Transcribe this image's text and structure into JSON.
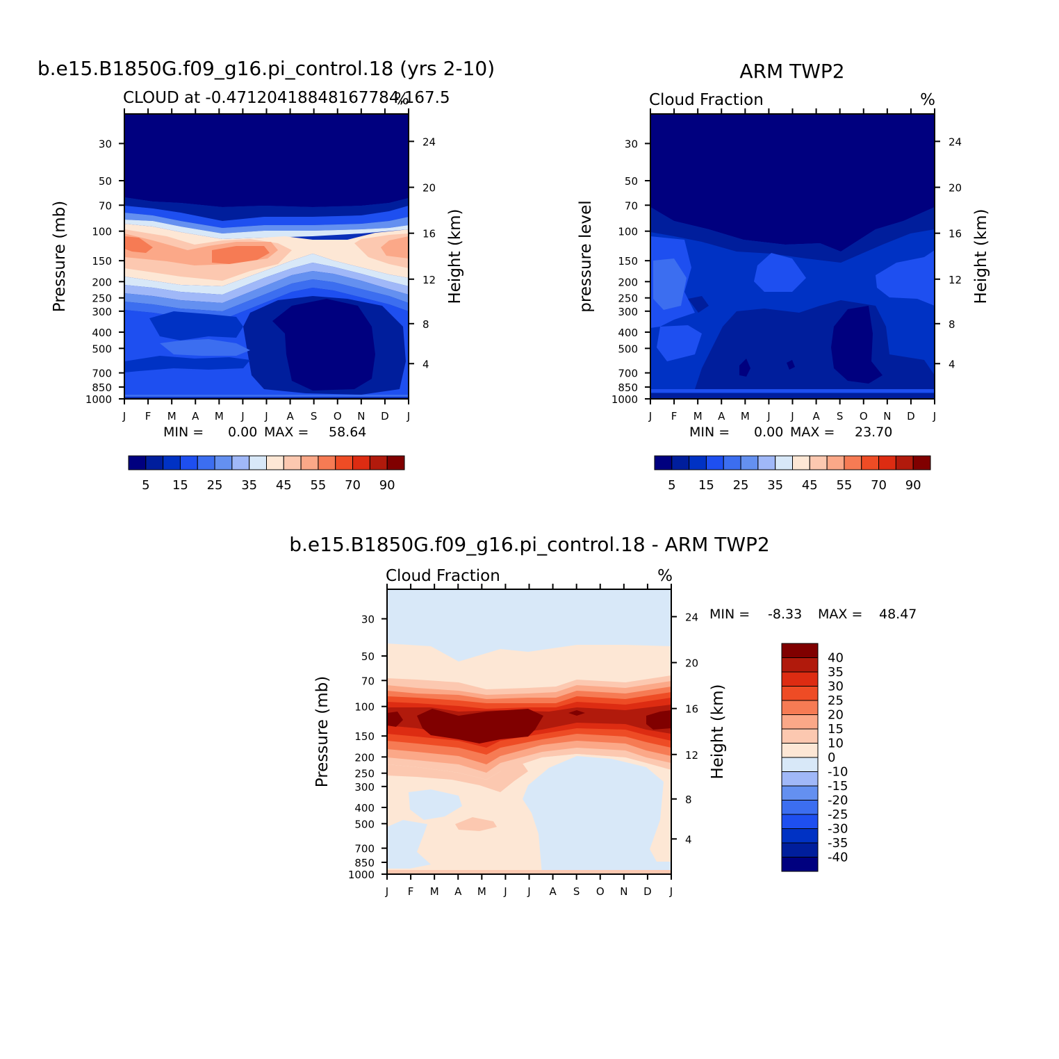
{
  "chart_data": [
    {
      "type": "heatmap",
      "id": "model",
      "title": "b.e15.B1850G.f09_g16.pi_control.18 (yrs 2-10)",
      "subtitle_left": "CLOUD at -0.47120418848167784,167.5",
      "subtitle_right": "%",
      "ylabel_left": "Pressure (mb)",
      "ylabel_right": "Height (km)",
      "months": [
        "J",
        "F",
        "M",
        "A",
        "M",
        "J",
        "J",
        "A",
        "S",
        "O",
        "N",
        "D",
        "J"
      ],
      "pressure_ticks": [
        "30",
        "50",
        "70",
        "100",
        "150",
        "200",
        "250",
        "300",
        "400",
        "500",
        "700",
        "850",
        "1000"
      ],
      "height_ticks": [
        "24",
        "20",
        "16",
        "12",
        "8",
        "4"
      ],
      "min_label": "MIN =",
      "min_value": "0.00",
      "max_label": "MAX =",
      "max_value": "58.64",
      "colorbar_labels": [
        "5",
        "15",
        "25",
        "35",
        "45",
        "55",
        "70",
        "90"
      ]
    },
    {
      "type": "heatmap",
      "id": "obs",
      "title": "ARM TWP2",
      "subtitle_left": "Cloud Fraction",
      "subtitle_right": "%",
      "ylabel_left": "pressure level",
      "ylabel_right": "Height (km)",
      "months": [
        "J",
        "F",
        "M",
        "A",
        "M",
        "J",
        "J",
        "A",
        "S",
        "O",
        "N",
        "D",
        "J"
      ],
      "pressure_ticks": [
        "30",
        "50",
        "70",
        "100",
        "150",
        "200",
        "250",
        "300",
        "400",
        "500",
        "700",
        "850",
        "1000"
      ],
      "height_ticks": [
        "24",
        "20",
        "16",
        "12",
        "8",
        "4"
      ],
      "min_label": "MIN =",
      "min_value": "0.00",
      "max_label": "MAX =",
      "max_value": "23.70",
      "colorbar_labels": [
        "5",
        "15",
        "25",
        "35",
        "45",
        "55",
        "70",
        "90"
      ]
    },
    {
      "type": "heatmap",
      "id": "diff",
      "title": "b.e15.B1850G.f09_g16.pi_control.18 - ARM TWP2",
      "subtitle_left": "Cloud Fraction",
      "subtitle_right": "%",
      "ylabel_left": "Pressure (mb)",
      "ylabel_right": "Height (km)",
      "months": [
        "J",
        "F",
        "M",
        "A",
        "M",
        "J",
        "J",
        "A",
        "S",
        "O",
        "N",
        "D",
        "J"
      ],
      "pressure_ticks": [
        "30",
        "50",
        "70",
        "100",
        "150",
        "200",
        "250",
        "300",
        "400",
        "500",
        "700",
        "850",
        "1000"
      ],
      "height_ticks": [
        "24",
        "20",
        "16",
        "12",
        "8",
        "4"
      ],
      "min_label": "MIN =",
      "min_value": "-8.33",
      "max_label": "MAX =",
      "max_value": "48.47",
      "colorbar_labels": [
        "40",
        "35",
        "30",
        "25",
        "20",
        "15",
        "10",
        "0",
        "-10",
        "-15",
        "-20",
        "-25",
        "-30",
        "-35",
        "-40"
      ]
    }
  ],
  "colors": {
    "seq16": [
      "#00007f",
      "#001e9c",
      "#0032c4",
      "#1e4ff0",
      "#3c6ef0",
      "#6490f0",
      "#a0b8f8",
      "#d8e8f8",
      "#fde7d5",
      "#fcc8b0",
      "#fba888",
      "#f67b54",
      "#ee4c25",
      "#dd2c12",
      "#b11a0c",
      "#800000"
    ],
    "diff16": [
      "#800000",
      "#b11a0c",
      "#dd2c12",
      "#ee4c25",
      "#f67b54",
      "#fba888",
      "#fcc8b0",
      "#fde7d5",
      "#d8e8f8",
      "#a0b8f8",
      "#6490f0",
      "#3c6ef0",
      "#1e4ff0",
      "#0032c4",
      "#001e9c",
      "#00007f"
    ]
  }
}
